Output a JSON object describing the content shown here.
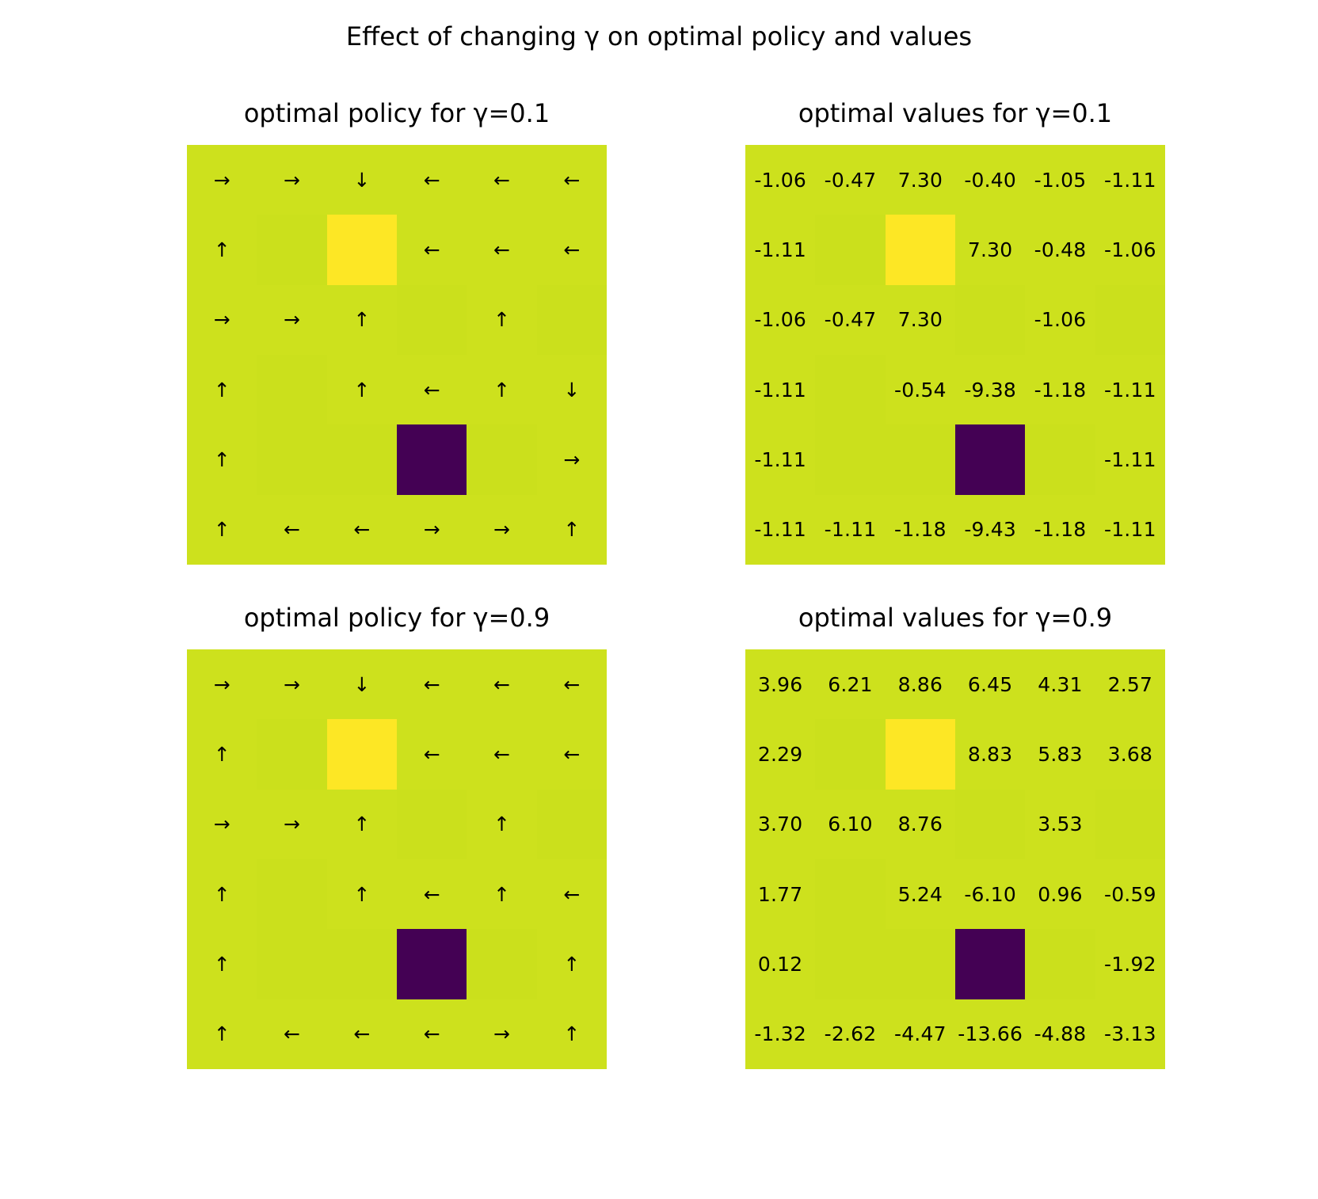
{
  "figure_title": "Effect of changing γ on optimal policy and values",
  "colors": {
    "normal": "#cde11d",
    "normal_alt": "#c9df1b",
    "wall": "#cbe01c",
    "goal": "#fde725",
    "pit": "#440154",
    "text": "#000000"
  },
  "chart_data": [
    {
      "type": "heatmap",
      "title": "optimal policy for γ=0.1",
      "cell_types": [
        [
          "n",
          "n",
          "n",
          "n",
          "n",
          "n"
        ],
        [
          "n",
          "w",
          "g",
          "n",
          "n",
          "n"
        ],
        [
          "n",
          "n",
          "n",
          "w",
          "n",
          "w"
        ],
        [
          "n",
          "w",
          "n",
          "n",
          "n",
          "n"
        ],
        [
          "n",
          "w",
          "w",
          "p",
          "w",
          "n"
        ],
        [
          "n",
          "n",
          "n",
          "n",
          "n",
          "n"
        ]
      ],
      "labels": [
        [
          "→",
          "→",
          "↓",
          "←",
          "←",
          "←"
        ],
        [
          "↑",
          "",
          "",
          "←",
          "←",
          "←"
        ],
        [
          "→",
          "→",
          "↑",
          "",
          "↑",
          ""
        ],
        [
          "↑",
          "",
          "↑",
          "←",
          "↑",
          "↓"
        ],
        [
          "↑",
          "",
          "",
          "",
          "",
          "→"
        ],
        [
          "↑",
          "←",
          "←",
          "→",
          "→",
          "↑"
        ]
      ]
    },
    {
      "type": "heatmap",
      "title": "optimal values for γ=0.1",
      "cell_types": [
        [
          "n",
          "n",
          "n",
          "n",
          "n",
          "n"
        ],
        [
          "n",
          "w",
          "g",
          "n",
          "n",
          "n"
        ],
        [
          "n",
          "n",
          "n",
          "w",
          "n",
          "w"
        ],
        [
          "n",
          "w",
          "n",
          "n",
          "n",
          "n"
        ],
        [
          "n",
          "w",
          "w",
          "p",
          "w",
          "n"
        ],
        [
          "n",
          "n",
          "n",
          "n",
          "n",
          "n"
        ]
      ],
      "labels": [
        [
          "-1.06",
          "-0.47",
          "7.30",
          "-0.40",
          "-1.05",
          "-1.11"
        ],
        [
          "-1.11",
          "",
          "",
          "7.30",
          "-0.48",
          "-1.06"
        ],
        [
          "-1.06",
          "-0.47",
          "7.30",
          "",
          "-1.06",
          ""
        ],
        [
          "-1.11",
          "",
          "-0.54",
          "-9.38",
          "-1.18",
          "-1.11"
        ],
        [
          "-1.11",
          "",
          "",
          "",
          "",
          "-1.11"
        ],
        [
          "-1.11",
          "-1.11",
          "-1.18",
          "-9.43",
          "-1.18",
          "-1.11"
        ]
      ]
    },
    {
      "type": "heatmap",
      "title": "optimal policy for γ=0.9",
      "cell_types": [
        [
          "n",
          "n",
          "n",
          "n",
          "n",
          "n"
        ],
        [
          "n",
          "w",
          "g",
          "n",
          "n",
          "n"
        ],
        [
          "n",
          "n",
          "n",
          "w",
          "n",
          "w"
        ],
        [
          "n",
          "w",
          "n",
          "n",
          "n",
          "n"
        ],
        [
          "n",
          "w",
          "w",
          "p",
          "w",
          "n"
        ],
        [
          "n",
          "n",
          "n",
          "n",
          "n",
          "n"
        ]
      ],
      "labels": [
        [
          "→",
          "→",
          "↓",
          "←",
          "←",
          "←"
        ],
        [
          "↑",
          "",
          "",
          "←",
          "←",
          "←"
        ],
        [
          "→",
          "→",
          "↑",
          "",
          "↑",
          ""
        ],
        [
          "↑",
          "",
          "↑",
          "←",
          "↑",
          "←"
        ],
        [
          "↑",
          "",
          "",
          "",
          "",
          "↑"
        ],
        [
          "↑",
          "←",
          "←",
          "←",
          "→",
          "↑"
        ]
      ]
    },
    {
      "type": "heatmap",
      "title": "optimal values for γ=0.9",
      "cell_types": [
        [
          "n",
          "n",
          "n",
          "n",
          "n",
          "n"
        ],
        [
          "n",
          "w",
          "g",
          "n",
          "n",
          "n"
        ],
        [
          "n",
          "n",
          "n",
          "w",
          "n",
          "w"
        ],
        [
          "n",
          "w",
          "n",
          "n",
          "n",
          "n"
        ],
        [
          "n",
          "w",
          "w",
          "p",
          "w",
          "n"
        ],
        [
          "n",
          "n",
          "n",
          "n",
          "n",
          "n"
        ]
      ],
      "labels": [
        [
          "3.96",
          "6.21",
          "8.86",
          "6.45",
          "4.31",
          "2.57"
        ],
        [
          "2.29",
          "",
          "",
          "8.83",
          "5.83",
          "3.68"
        ],
        [
          "3.70",
          "6.10",
          "8.76",
          "",
          "3.53",
          ""
        ],
        [
          "1.77",
          "",
          "5.24",
          "-6.10",
          "0.96",
          "-0.59"
        ],
        [
          "0.12",
          "",
          "",
          "",
          "",
          "-1.92"
        ],
        [
          "-1.32",
          "-2.62",
          "-4.47",
          "-13.66",
          "-4.88",
          "-3.13"
        ]
      ]
    }
  ]
}
